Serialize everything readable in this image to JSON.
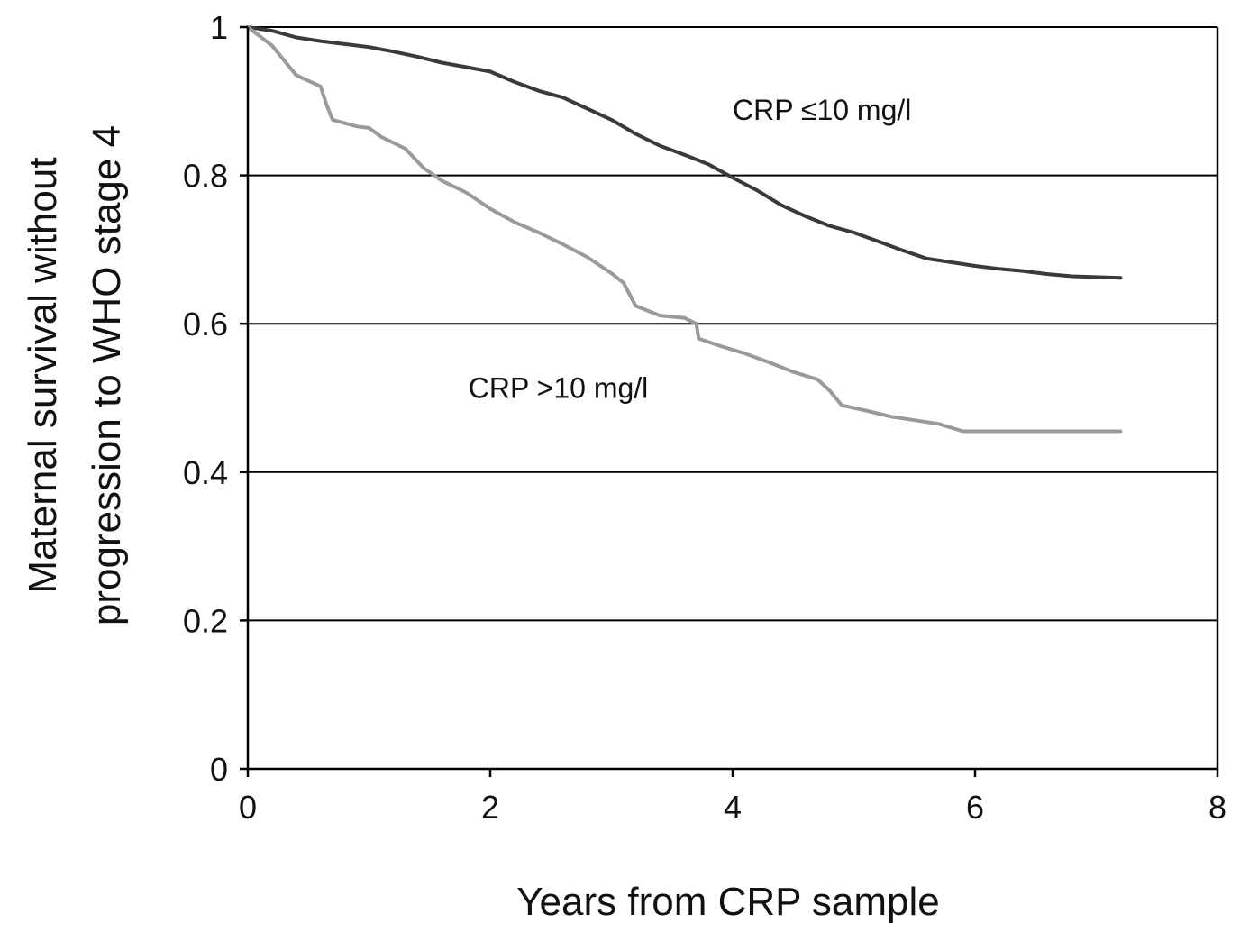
{
  "chart_data": {
    "type": "line",
    "title": "",
    "xlabel": "Years from CRP sample",
    "ylabel_lines": [
      "Maternal survival without",
      "progression to WHO stage 4"
    ],
    "xlim": [
      0,
      8
    ],
    "ylim": [
      0,
      1
    ],
    "x_ticks": [
      0,
      2,
      4,
      6,
      8
    ],
    "y_ticks": [
      0,
      0.2,
      0.4,
      0.6,
      0.8,
      1
    ],
    "x_tick_labels": [
      "0",
      "2",
      "4",
      "6",
      "8"
    ],
    "y_tick_labels": [
      "0",
      "0.2",
      "0.4",
      "0.6",
      "0.8",
      "1"
    ],
    "grid": "horizontal",
    "annotations": [
      {
        "text": "CRP ≤10 mg/l",
        "x": 4.0,
        "y": 0.875
      },
      {
        "text": "CRP >10 mg/l",
        "x": 1.82,
        "y": 0.5
      }
    ],
    "series": [
      {
        "color": "#3a3a3a",
        "x": [
          0,
          0.2,
          0.4,
          0.6,
          0.8,
          1.0,
          1.2,
          1.4,
          1.6,
          1.8,
          2.0,
          2.2,
          2.4,
          2.6,
          2.8,
          3.0,
          3.2,
          3.4,
          3.6,
          3.8,
          4.0,
          4.2,
          4.4,
          4.6,
          4.8,
          5.0,
          5.2,
          5.4,
          5.6,
          5.8,
          6.0,
          6.2,
          6.4,
          6.6,
          6.8,
          7.0,
          7.2
        ],
        "y": [
          1.0,
          0.995,
          0.986,
          0.981,
          0.977,
          0.973,
          0.967,
          0.96,
          0.952,
          0.946,
          0.94,
          0.926,
          0.914,
          0.905,
          0.89,
          0.875,
          0.856,
          0.84,
          0.828,
          0.815,
          0.797,
          0.78,
          0.76,
          0.745,
          0.732,
          0.723,
          0.711,
          0.699,
          0.688,
          0.683,
          0.678,
          0.674,
          0.671,
          0.667,
          0.664,
          0.663,
          0.662
        ]
      },
      {
        "color": "#9a9a9a",
        "x": [
          0,
          0.2,
          0.4,
          0.6,
          0.65,
          0.7,
          0.9,
          1.0,
          1.1,
          1.3,
          1.45,
          1.6,
          1.8,
          2.0,
          2.2,
          2.4,
          2.6,
          2.8,
          3.0,
          3.1,
          3.2,
          3.4,
          3.6,
          3.7,
          3.72,
          3.9,
          4.1,
          4.3,
          4.5,
          4.7,
          4.8,
          4.9,
          5.1,
          5.3,
          5.5,
          5.7,
          5.9,
          6.2,
          6.6,
          7.2
        ],
        "y": [
          1.0,
          0.975,
          0.935,
          0.92,
          0.895,
          0.875,
          0.866,
          0.864,
          0.852,
          0.836,
          0.81,
          0.793,
          0.777,
          0.755,
          0.737,
          0.723,
          0.707,
          0.69,
          0.668,
          0.655,
          0.624,
          0.611,
          0.608,
          0.6,
          0.58,
          0.57,
          0.56,
          0.548,
          0.535,
          0.525,
          0.51,
          0.49,
          0.483,
          0.475,
          0.47,
          0.465,
          0.455,
          0.455,
          0.455,
          0.455
        ]
      }
    ]
  }
}
